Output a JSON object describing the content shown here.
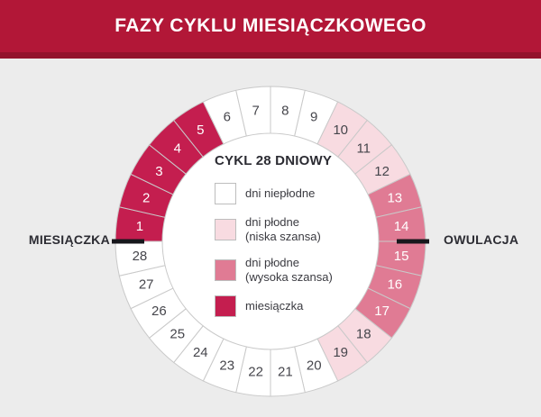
{
  "header": {
    "title": "FAZY CYKLU MIESIĄCZKOWEGO",
    "bg_color": "#b21737",
    "strip_color": "#93132c"
  },
  "labels": {
    "left": "MIESIĄCZKA",
    "right": "OWULACJA"
  },
  "legend": {
    "title": "CYKL 28 DNIOWY",
    "items": [
      {
        "key": "infertile",
        "label": "dni niepłodne"
      },
      {
        "key": "fertile-low",
        "label": "dni płodne",
        "sublabel": "(niska szansa)"
      },
      {
        "key": "fertile-high",
        "label": "dni płodne",
        "sublabel": "(wysoka szansa)"
      },
      {
        "key": "menstruation",
        "label": "miesiączka"
      }
    ]
  },
  "categories": {
    "infertile": {
      "color": "#ffffff",
      "text": "#46464c"
    },
    "fertile-low": {
      "color": "#f8dbe1",
      "text": "#46464c"
    },
    "fertile-high": {
      "color": "#e07b94",
      "text": "#ffffff"
    },
    "menstruation": {
      "color": "#c41e4f",
      "text": "#ffffff"
    }
  },
  "ring": {
    "total_days": 28,
    "segment_border": "#c9c9c9",
    "tick_color": "#17171c",
    "inner_fill": "#ffffff",
    "day_categories": [
      "menstruation",
      "menstruation",
      "menstruation",
      "menstruation",
      "menstruation",
      "infertile",
      "infertile",
      "infertile",
      "infertile",
      "fertile-low",
      "fertile-low",
      "fertile-low",
      "fertile-high",
      "fertile-high",
      "fertile-high",
      "fertile-high",
      "fertile-high",
      "fertile-low",
      "fertile-low",
      "infertile",
      "infertile",
      "infertile",
      "infertile",
      "infertile",
      "infertile",
      "infertile",
      "infertile",
      "infertile"
    ]
  }
}
